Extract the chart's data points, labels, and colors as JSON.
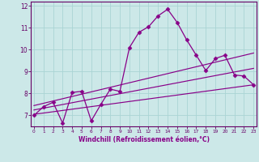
{
  "xlabel": "Windchill (Refroidissement éolien,°C)",
  "background_color": "#cce8e8",
  "line_color": "#880088",
  "grid_color": "#aad4d4",
  "axis_color": "#660066",
  "tick_color": "#660066",
  "xlabel_color": "#880088",
  "x_ticks": [
    0,
    1,
    2,
    3,
    4,
    5,
    6,
    7,
    8,
    9,
    10,
    11,
    12,
    13,
    14,
    15,
    16,
    17,
    18,
    19,
    20,
    21,
    22,
    23
  ],
  "y_ticks": [
    7,
    8,
    9,
    10,
    11,
    12
  ],
  "xlim": [
    -0.3,
    23.3
  ],
  "ylim": [
    6.5,
    12.2
  ],
  "main_line_x": [
    0,
    1,
    2,
    3,
    4,
    5,
    6,
    7,
    8,
    9,
    10,
    11,
    12,
    13,
    14,
    15,
    16,
    17,
    18,
    19,
    20,
    21,
    22,
    23
  ],
  "main_line_y": [
    7.0,
    7.4,
    7.6,
    6.65,
    8.05,
    8.1,
    6.75,
    7.5,
    8.2,
    8.1,
    10.1,
    10.8,
    11.05,
    11.55,
    11.85,
    11.25,
    10.45,
    9.75,
    9.05,
    9.6,
    9.75,
    8.85,
    8.8,
    8.4
  ],
  "line1_x": [
    0,
    23
  ],
  "line1_y": [
    7.05,
    8.4
  ],
  "line2_x": [
    0,
    23
  ],
  "line2_y": [
    7.25,
    9.15
  ],
  "line3_x": [
    0,
    23
  ],
  "line3_y": [
    7.45,
    9.85
  ],
  "marker": "D",
  "marker_size": 2.5,
  "lw_main": 0.9,
  "lw_ref": 0.85
}
